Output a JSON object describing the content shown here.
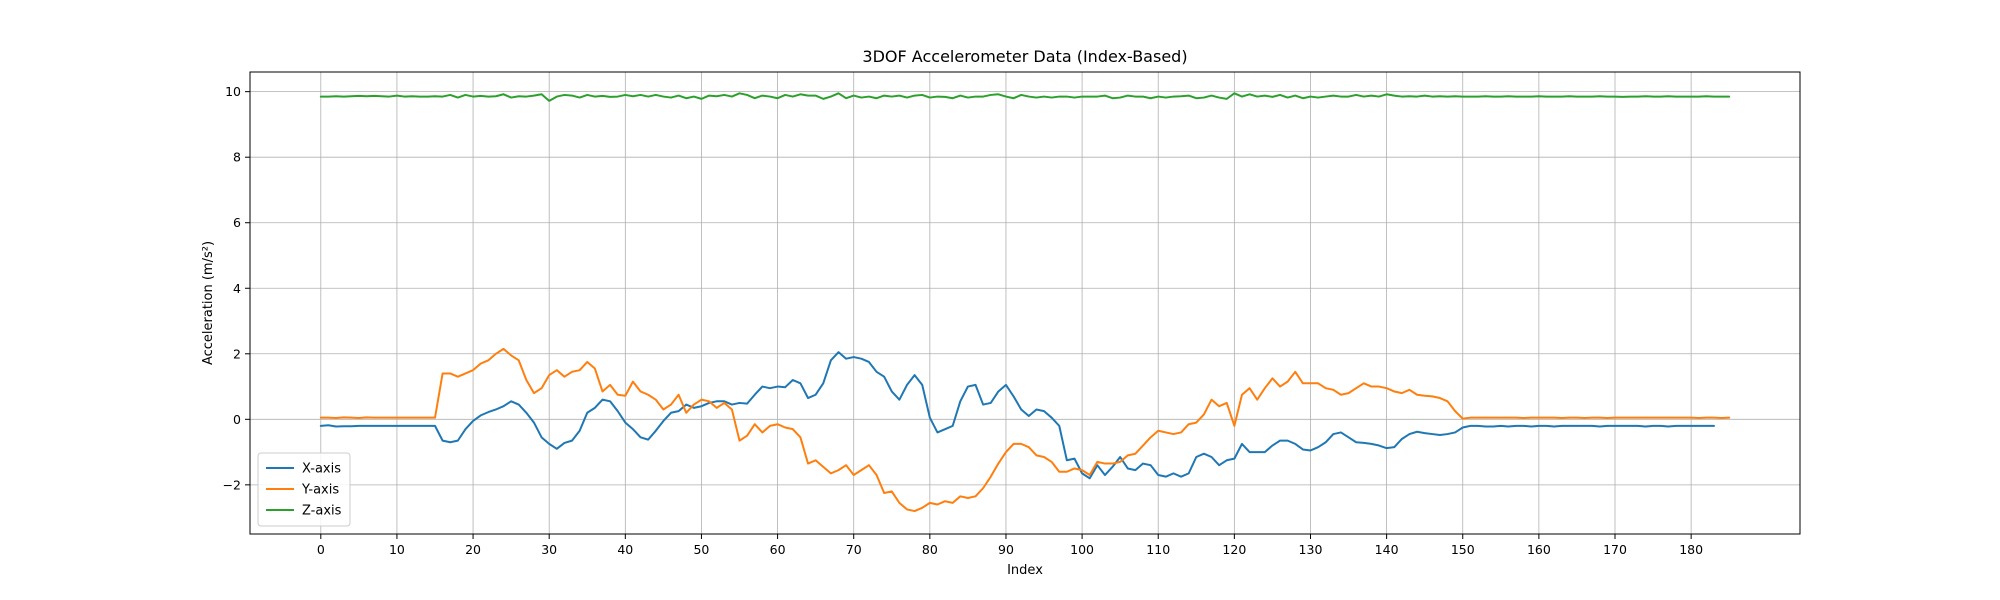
{
  "chart_data": {
    "type": "line",
    "title": "3DOF Accelerometer Data (Index-Based)",
    "xlabel": "Index",
    "ylabel": "Acceleration (m/s²)",
    "xlim": [
      -9.3,
      194.3
    ],
    "ylim": [
      -3.5,
      10.6
    ],
    "x_ticks": [
      0,
      10,
      20,
      30,
      40,
      50,
      60,
      70,
      80,
      90,
      100,
      110,
      120,
      130,
      140,
      150,
      160,
      170,
      180
    ],
    "y_ticks": [
      -2,
      0,
      2,
      4,
      6,
      8,
      10
    ],
    "grid": true,
    "legend_position": "lower-left",
    "x_start": 0,
    "series": [
      {
        "name": "X-axis",
        "color": "#1f77b4",
        "values": [
          -0.2,
          -0.18,
          -0.22,
          -0.21,
          -0.21,
          -0.2,
          -0.2,
          -0.2,
          -0.2,
          -0.2,
          -0.2,
          -0.2,
          -0.2,
          -0.2,
          -0.2,
          -0.2,
          -0.65,
          -0.7,
          -0.65,
          -0.3,
          -0.05,
          0.12,
          0.22,
          0.3,
          0.4,
          0.55,
          0.45,
          0.2,
          -0.1,
          -0.55,
          -0.75,
          -0.9,
          -0.72,
          -0.65,
          -0.35,
          0.2,
          0.35,
          0.6,
          0.55,
          0.25,
          -0.1,
          -0.3,
          -0.55,
          -0.62,
          -0.35,
          -0.05,
          0.2,
          0.25,
          0.45,
          0.35,
          0.4,
          0.5,
          0.55,
          0.55,
          0.45,
          0.5,
          0.48,
          0.75,
          1.0,
          0.95,
          1.0,
          0.98,
          1.2,
          1.1,
          0.65,
          0.75,
          1.1,
          1.8,
          2.05,
          1.85,
          1.9,
          1.85,
          1.75,
          1.45,
          1.3,
          0.85,
          0.6,
          1.05,
          1.35,
          1.05,
          0.05,
          -0.4,
          -0.3,
          -0.2,
          0.55,
          1.0,
          1.05,
          0.45,
          0.5,
          0.85,
          1.05,
          0.7,
          0.3,
          0.1,
          0.3,
          0.25,
          0.05,
          -0.2,
          -1.25,
          -1.2,
          -1.65,
          -1.8,
          -1.4,
          -1.7,
          -1.45,
          -1.15,
          -1.5,
          -1.55,
          -1.35,
          -1.4,
          -1.7,
          -1.75,
          -1.65,
          -1.75,
          -1.65,
          -1.15,
          -1.05,
          -1.15,
          -1.4,
          -1.25,
          -1.2,
          -0.75,
          -1.0,
          -1.0,
          -1.0,
          -0.8,
          -0.65,
          -0.65,
          -0.75,
          -0.92,
          -0.95,
          -0.85,
          -0.7,
          -0.45,
          -0.4,
          -0.55,
          -0.7,
          -0.72,
          -0.75,
          -0.8,
          -0.88,
          -0.85,
          -0.6,
          -0.45,
          -0.38,
          -0.42,
          -0.45,
          -0.48,
          -0.45,
          -0.4,
          -0.25,
          -0.2,
          -0.2,
          -0.22,
          -0.22,
          -0.2,
          -0.22,
          -0.2,
          -0.2,
          -0.22,
          -0.2,
          -0.2,
          -0.22,
          -0.2,
          -0.2,
          -0.2,
          -0.2,
          -0.2,
          -0.22,
          -0.2,
          -0.2,
          -0.2,
          -0.2,
          -0.2,
          -0.22,
          -0.2,
          -0.2,
          -0.22,
          -0.2,
          -0.2,
          -0.2,
          -0.2,
          -0.2,
          -0.2
        ]
      },
      {
        "name": "Y-axis",
        "color": "#ff7f0e",
        "values": [
          0.05,
          0.05,
          0.04,
          0.06,
          0.05,
          0.04,
          0.06,
          0.05,
          0.05,
          0.05,
          0.05,
          0.05,
          0.05,
          0.05,
          0.05,
          0.05,
          1.4,
          1.4,
          1.3,
          1.4,
          1.5,
          1.7,
          1.8,
          2.0,
          2.15,
          1.95,
          1.8,
          1.2,
          0.8,
          0.95,
          1.35,
          1.5,
          1.3,
          1.45,
          1.5,
          1.75,
          1.55,
          0.85,
          1.05,
          0.75,
          0.72,
          1.15,
          0.85,
          0.75,
          0.6,
          0.3,
          0.45,
          0.75,
          0.2,
          0.45,
          0.6,
          0.55,
          0.35,
          0.5,
          0.3,
          -0.65,
          -0.5,
          -0.15,
          -0.4,
          -0.2,
          -0.15,
          -0.25,
          -0.3,
          -0.55,
          -1.35,
          -1.25,
          -1.45,
          -1.65,
          -1.55,
          -1.4,
          -1.7,
          -1.55,
          -1.4,
          -1.7,
          -2.25,
          -2.2,
          -2.55,
          -2.75,
          -2.8,
          -2.7,
          -2.55,
          -2.6,
          -2.5,
          -2.55,
          -2.35,
          -2.4,
          -2.35,
          -2.1,
          -1.75,
          -1.35,
          -1.0,
          -0.75,
          -0.75,
          -0.85,
          -1.1,
          -1.15,
          -1.3,
          -1.6,
          -1.6,
          -1.5,
          -1.55,
          -1.7,
          -1.3,
          -1.35,
          -1.35,
          -1.3,
          -1.1,
          -1.05,
          -0.8,
          -0.55,
          -0.35,
          -0.4,
          -0.45,
          -0.4,
          -0.15,
          -0.1,
          0.15,
          0.6,
          0.4,
          0.5,
          -0.2,
          0.75,
          0.95,
          0.6,
          0.95,
          1.25,
          1.0,
          1.15,
          1.45,
          1.1,
          1.1,
          1.1,
          0.95,
          0.9,
          0.75,
          0.8,
          0.95,
          1.1,
          1.0,
          1.0,
          0.95,
          0.85,
          0.8,
          0.9,
          0.75,
          0.72,
          0.7,
          0.65,
          0.55,
          0.25,
          0.02,
          0.05,
          0.05,
          0.05,
          0.05,
          0.05,
          0.05,
          0.05,
          0.04,
          0.05,
          0.05,
          0.05,
          0.05,
          0.04,
          0.05,
          0.05,
          0.04,
          0.05,
          0.05,
          0.04,
          0.05,
          0.05,
          0.05,
          0.05,
          0.05,
          0.05,
          0.05,
          0.05,
          0.05,
          0.05,
          0.05,
          0.04,
          0.05,
          0.05,
          0.04,
          0.05
        ]
      },
      {
        "name": "Z-axis",
        "color": "#2ca02c",
        "values": [
          9.85,
          9.85,
          9.86,
          9.85,
          9.86,
          9.87,
          9.86,
          9.87,
          9.86,
          9.85,
          9.88,
          9.85,
          9.86,
          9.85,
          9.85,
          9.86,
          9.85,
          9.9,
          9.82,
          9.9,
          9.85,
          9.87,
          9.85,
          9.86,
          9.92,
          9.82,
          9.86,
          9.85,
          9.88,
          9.92,
          9.72,
          9.85,
          9.9,
          9.88,
          9.82,
          9.9,
          9.85,
          9.87,
          9.84,
          9.85,
          9.9,
          9.86,
          9.9,
          9.85,
          9.9,
          9.85,
          9.82,
          9.88,
          9.8,
          9.85,
          9.78,
          9.88,
          9.86,
          9.9,
          9.85,
          9.95,
          9.9,
          9.8,
          9.88,
          9.85,
          9.8,
          9.9,
          9.85,
          9.92,
          9.88,
          9.88,
          9.78,
          9.85,
          9.95,
          9.8,
          9.88,
          9.82,
          9.85,
          9.8,
          9.88,
          9.85,
          9.88,
          9.82,
          9.88,
          9.9,
          9.82,
          9.85,
          9.84,
          9.8,
          9.88,
          9.82,
          9.85,
          9.85,
          9.9,
          9.92,
          9.85,
          9.8,
          9.9,
          9.85,
          9.82,
          9.85,
          9.82,
          9.85,
          9.85,
          9.82,
          9.85,
          9.85,
          9.85,
          9.88,
          9.8,
          9.82,
          9.88,
          9.85,
          9.85,
          9.8,
          9.85,
          9.82,
          9.85,
          9.86,
          9.88,
          9.8,
          9.82,
          9.88,
          9.82,
          9.78,
          9.95,
          9.85,
          9.92,
          9.85,
          9.88,
          9.84,
          9.9,
          9.82,
          9.88,
          9.8,
          9.85,
          9.82,
          9.85,
          9.88,
          9.85,
          9.85,
          9.9,
          9.85,
          9.88,
          9.85,
          9.92,
          9.88,
          9.85,
          9.86,
          9.85,
          9.88,
          9.85,
          9.86,
          9.85,
          9.86,
          9.85,
          9.85,
          9.85,
          9.86,
          9.85,
          9.85,
          9.86,
          9.85,
          9.85,
          9.85,
          9.86,
          9.85,
          9.85,
          9.85,
          9.86,
          9.85,
          9.85,
          9.85,
          9.86,
          9.85,
          9.85,
          9.84,
          9.85,
          9.85,
          9.86,
          9.85,
          9.85,
          9.86,
          9.85,
          9.85,
          9.85,
          9.85,
          9.86,
          9.85,
          9.85,
          9.85
        ]
      }
    ]
  }
}
